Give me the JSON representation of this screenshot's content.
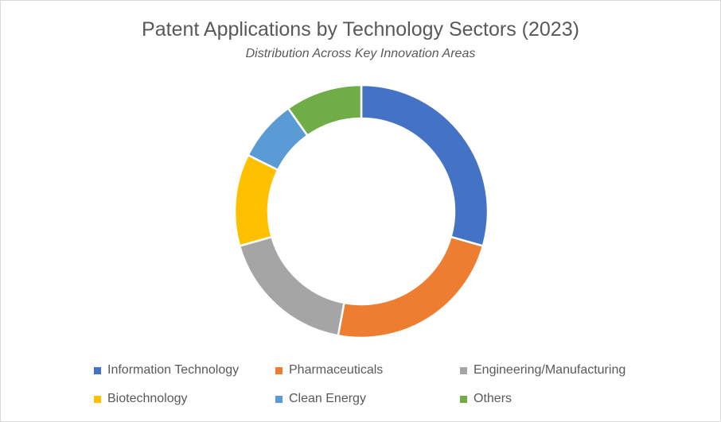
{
  "chart_data": {
    "type": "pie",
    "variant": "donut",
    "title": "Patent Applications by Technology Sectors (2023)",
    "subtitle": "Distribution Across Key Innovation Areas",
    "legend_position": "bottom",
    "slices": [
      {
        "label": "Information Technology",
        "value": 30,
        "color": "#4472C4"
      },
      {
        "label": "Pharmaceuticals",
        "value": 24,
        "color": "#ED7D31"
      },
      {
        "label": "Engineering/Manufacturing",
        "value": 18,
        "color": "#A5A5A5"
      },
      {
        "label": "Biotechnology",
        "value": 12,
        "color": "#FFC000"
      },
      {
        "label": "Clean Energy",
        "value": 8,
        "color": "#5B9BD5"
      },
      {
        "label": "Others",
        "value": 10,
        "color": "#70AD47"
      }
    ]
  }
}
